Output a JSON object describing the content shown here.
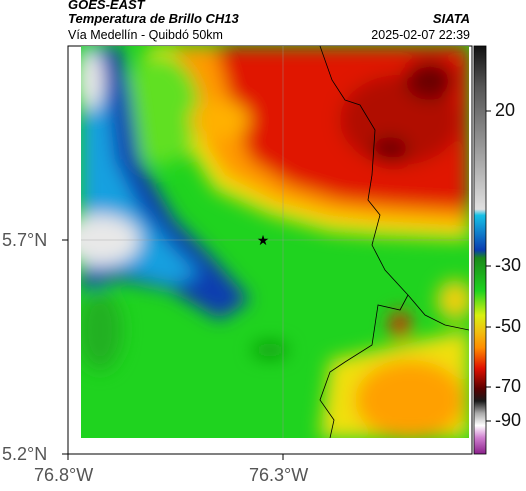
{
  "header": {
    "satellite": "GOES-EAST",
    "product": "Temperatura de Brillo CH13",
    "route": "Vía Medellín - Quibdó 50km",
    "agency": "SIATA",
    "timestamp": "2025-02-07 22:39"
  },
  "map": {
    "lat_ticks": [
      "5.7°N",
      "5.2°N"
    ],
    "lon_ticks": [
      "76.8°W",
      "76.3°W"
    ],
    "marker": "star-icon",
    "gridlines": true
  },
  "colorbar": {
    "labels": [
      "20",
      "-30",
      "-50",
      "-70",
      "-90"
    ],
    "colors": {
      "warm_top": "#222222",
      "gray": "#bfbfbf",
      "cyan": "#16c1e6",
      "blue": "#0a3cb0",
      "green": "#1fd31f",
      "yellow": "#f0f010",
      "orange": "#ff8c00",
      "red": "#e01000",
      "darkred": "#5a0000",
      "magenta": "#b040b0"
    }
  }
}
